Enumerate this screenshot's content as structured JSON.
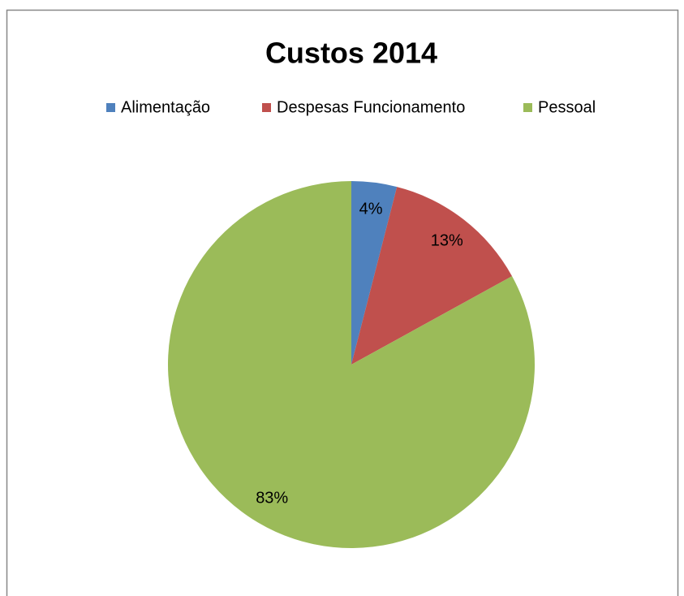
{
  "chart_data": {
    "type": "pie",
    "title": "Custos 2014",
    "categories": [
      "Alimentação",
      "Despesas Funcionamento",
      "Pessoal"
    ],
    "values": [
      4,
      13,
      83
    ],
    "value_labels": [
      "4%",
      "13%",
      "83%"
    ],
    "colors": [
      "#4f81bd",
      "#c0504d",
      "#9bbb59"
    ],
    "legend": "top"
  }
}
